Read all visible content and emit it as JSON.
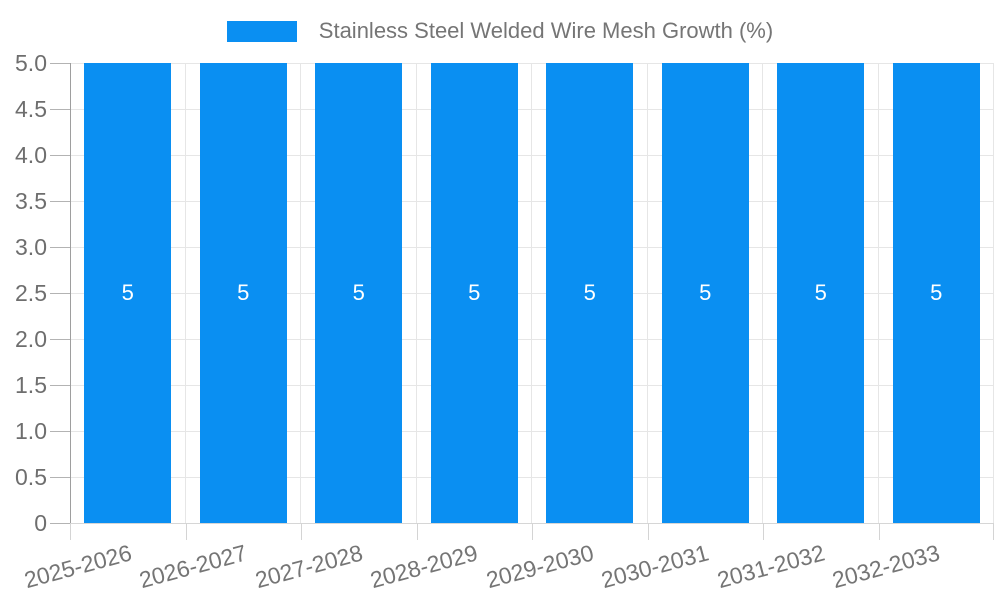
{
  "chart_data": {
    "type": "bar",
    "legend": {
      "label": "Stainless Steel Welded Wire Mesh Growth (%)",
      "position": "top"
    },
    "categories": [
      "2025-2026",
      "2026-2027",
      "2027-2028",
      "2028-2029",
      "2029-2030",
      "2030-2031",
      "2031-2032",
      "2032-2033"
    ],
    "values": [
      5,
      5,
      5,
      5,
      5,
      5,
      5,
      5
    ],
    "bar_labels": [
      "5",
      "5",
      "5",
      "5",
      "5",
      "5",
      "5",
      "5"
    ],
    "y_tick_labels": [
      "5.0",
      "4.5",
      "4.0",
      "3.5",
      "3.0",
      "2.5",
      "2.0",
      "1.5",
      "1.0",
      "0.5",
      "0"
    ],
    "ylim": [
      0,
      5
    ],
    "xlabel": "",
    "ylabel": "",
    "grid": true,
    "colors": {
      "bar": "#0a8ff2",
      "bar_label": "#ffffff",
      "legend_text": "#757575",
      "axis_text": "#6e6e6e",
      "gridline": "#e6e6e6",
      "axis_line": "#9e9e9e"
    }
  }
}
